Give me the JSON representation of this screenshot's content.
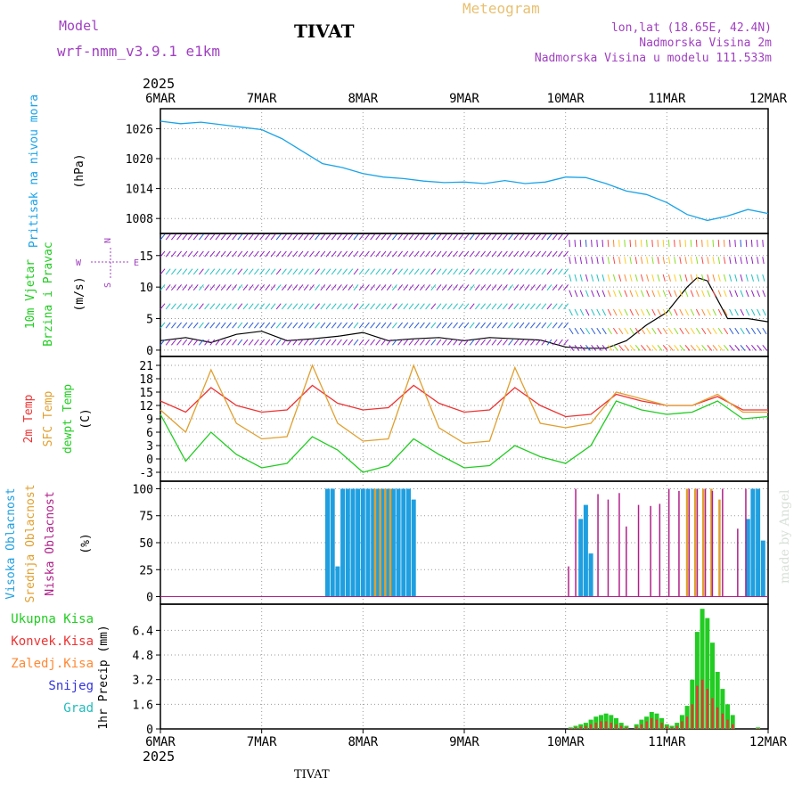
{
  "header": {
    "model_label": "Model",
    "model_name": "wrf-nmm_v3.9.1 e1km",
    "location": "TIVAT",
    "product": "Meteogram",
    "coords": "lon,lat (18.65E, 42.4N)",
    "elevation": "Nadmorska Visina 2m",
    "model_elevation": "Nadmorska Visina u modelu 111.533m"
  },
  "footer": {
    "location": "TIVAT",
    "watermark": "made by Angel"
  },
  "time_axis": {
    "year": "2025",
    "labels": [
      "6MAR",
      "7MAR",
      "8MAR",
      "9MAR",
      "10MAR",
      "11MAR",
      "12MAR"
    ]
  },
  "colors": {
    "pressure": "#1aa3e8",
    "speed": "#000000",
    "temp2m": "#ee3333",
    "sfc": "#e0a030",
    "dew": "#22cc22",
    "high_cloud": "#1f9fe0",
    "mid_cloud": "#e0a030",
    "low_cloud": "#b0208a",
    "total_precip": "#22cc22",
    "conv_precip": "#ee3333",
    "frz_precip": "#ff8833",
    "snow": "#3333dd",
    "hail": "#22bbbb"
  },
  "chart_data": [
    {
      "type": "line",
      "panel": "pressure",
      "ylabels": [
        "Pritisak na nivou mora",
        "(hPa)"
      ],
      "yticks": [
        1008,
        1014,
        1020,
        1026
      ],
      "ylim": [
        1005,
        1030
      ],
      "x": [
        0,
        0.2,
        0.4,
        0.6,
        0.8,
        1.0,
        1.2,
        1.4,
        1.6,
        1.8,
        2.0,
        2.2,
        2.4,
        2.6,
        2.8,
        3.0,
        3.2,
        3.4,
        3.6,
        3.8,
        4.0,
        4.2,
        4.4,
        4.6,
        4.8,
        5.0,
        5.2,
        5.4,
        5.6,
        5.8,
        6.0
      ],
      "series": [
        {
          "values": [
            1027.5,
            1027.0,
            1027.3,
            1026.8,
            1026.3,
            1025.8,
            1024.0,
            1021.5,
            1019.0,
            1018.2,
            1017.0,
            1016.3,
            1016.0,
            1015.5,
            1015.2,
            1015.3,
            1015.0,
            1015.6,
            1015.0,
            1015.3,
            1016.3,
            1016.2,
            1015.0,
            1013.5,
            1012.8,
            1011.2,
            1008.8,
            1007.6,
            1008.5,
            1009.8,
            1009.0
          ]
        }
      ]
    },
    {
      "type": "line",
      "panel": "wind",
      "ylabels": [
        "10m Vjetar",
        "Brzina i Pravac",
        "(m/s)"
      ],
      "direction_key": [
        "N",
        "W",
        "E",
        "S"
      ],
      "yticks": [
        0,
        5,
        10,
        15
      ],
      "ylim": [
        -1,
        18.5
      ],
      "x": [
        0,
        0.25,
        0.5,
        0.75,
        1.0,
        1.25,
        1.5,
        1.75,
        2.0,
        2.25,
        2.5,
        2.75,
        3.0,
        3.25,
        3.5,
        3.75,
        4.0,
        4.2,
        4.4,
        4.6,
        4.8,
        5.0,
        5.1,
        5.2,
        5.3,
        5.4,
        5.5,
        5.6,
        5.7,
        5.8,
        6.0
      ],
      "series": [
        {
          "name": "speed",
          "values": [
            1.5,
            2.0,
            1.2,
            2.5,
            3.0,
            1.5,
            1.8,
            2.2,
            2.8,
            1.5,
            1.8,
            2.0,
            1.5,
            2.0,
            1.8,
            1.6,
            0.5,
            0.3,
            0.3,
            1.5,
            4.0,
            6.0,
            8.0,
            10.0,
            11.5,
            11.0,
            8.0,
            5.0,
            5.0,
            5.0,
            4.5
          ]
        }
      ]
    },
    {
      "type": "line",
      "panel": "temperature",
      "ylabels": [
        "2m Temp",
        "SFC Temp",
        "dewpt Temp",
        "(C)"
      ],
      "yticks": [
        -3,
        0,
        3,
        6,
        9,
        12,
        15,
        18,
        21
      ],
      "ylim": [
        -5,
        23
      ],
      "x": [
        0,
        0.25,
        0.5,
        0.75,
        1.0,
        1.25,
        1.5,
        1.75,
        2.0,
        2.25,
        2.5,
        2.75,
        3.0,
        3.25,
        3.5,
        3.75,
        4.0,
        4.25,
        4.5,
        4.75,
        5.0,
        5.25,
        5.5,
        5.75,
        6.0
      ],
      "series": [
        {
          "name": "2m Temp",
          "values": [
            13.0,
            10.5,
            16.0,
            12.0,
            10.5,
            11.0,
            16.5,
            12.5,
            11.0,
            11.5,
            16.5,
            12.5,
            10.5,
            11.0,
            16.0,
            12.0,
            9.5,
            10.0,
            14.5,
            13.0,
            12.0,
            12.0,
            14.0,
            11.0,
            11.0
          ]
        },
        {
          "name": "SFC Temp",
          "values": [
            11.0,
            6.0,
            20.0,
            8.0,
            4.5,
            5.0,
            21.0,
            8.0,
            4.0,
            4.5,
            21.0,
            7.0,
            3.5,
            4.0,
            20.5,
            8.0,
            7.0,
            8.0,
            15.0,
            13.5,
            12.0,
            12.0,
            14.5,
            10.5,
            10.5
          ]
        },
        {
          "name": "dewpt Temp",
          "values": [
            10.0,
            -0.5,
            6.0,
            1.0,
            -2.0,
            -1.0,
            5.0,
            2.0,
            -3.0,
            -1.5,
            4.5,
            1.0,
            -2.0,
            -1.5,
            3.0,
            0.5,
            -1.0,
            3.0,
            13.0,
            11.0,
            10.0,
            10.5,
            13.0,
            9.0,
            9.5
          ]
        }
      ]
    },
    {
      "type": "bar",
      "panel": "clouds",
      "ylabels": [
        "Visoka Oblacnost",
        "Srednja Oblacnost",
        "Niska Oblacnost",
        "(%)"
      ],
      "yticks": [
        0,
        25,
        50,
        75,
        100
      ],
      "ylim": [
        -7,
        107
      ],
      "series": [
        {
          "name": "Visoka Oblacnost",
          "x": [
            1.65,
            1.7,
            1.75,
            1.8,
            1.85,
            1.9,
            1.95,
            2.0,
            2.05,
            2.1,
            2.15,
            2.2,
            2.25,
            2.3,
            2.35,
            2.4,
            2.45,
            2.5,
            4.15,
            4.2,
            4.25,
            5.8,
            5.85,
            5.9,
            5.95
          ],
          "values": [
            100,
            100,
            28,
            100,
            100,
            100,
            100,
            100,
            100,
            100,
            100,
            100,
            100,
            100,
            100,
            100,
            100,
            90,
            72,
            85,
            40,
            72,
            100,
            100,
            52
          ]
        },
        {
          "name": "Srednja Oblacnost",
          "x": [
            2.12,
            2.17,
            2.22,
            2.27,
            5.2,
            5.28,
            5.36,
            5.44,
            5.52
          ],
          "values": [
            100,
            100,
            100,
            100,
            100,
            100,
            100,
            100,
            90
          ]
        },
        {
          "name": "Niska Oblacnost",
          "x": [
            4.03,
            4.1,
            4.32,
            4.42,
            4.53,
            4.6,
            4.72,
            4.84,
            4.93,
            5.02,
            5.12,
            5.22,
            5.3,
            5.38,
            5.45,
            5.55,
            5.7,
            5.78
          ],
          "values": [
            28,
            100,
            95,
            90,
            96,
            65,
            85,
            84,
            86,
            100,
            98,
            100,
            100,
            100,
            98,
            100,
            63,
            100
          ]
        }
      ]
    },
    {
      "type": "bar",
      "panel": "precipitation",
      "ylabels": [
        "1hr Precip (mm)"
      ],
      "legend": [
        "Ukupna Kisa",
        "Konvek.Kisa",
        "Zaledj.Kisa",
        "Snijeg",
        "Grad"
      ],
      "yticks": [
        0,
        1.6,
        3.2,
        4.8,
        6.4
      ],
      "ylim": [
        0,
        8.1
      ],
      "x": [
        4.05,
        4.1,
        4.15,
        4.2,
        4.25,
        4.3,
        4.35,
        4.4,
        4.45,
        4.5,
        4.55,
        4.6,
        4.7,
        4.75,
        4.8,
        4.85,
        4.9,
        4.95,
        5.0,
        5.05,
        5.1,
        5.15,
        5.2,
        5.25,
        5.3,
        5.35,
        5.4,
        5.45,
        5.5,
        5.55,
        5.6,
        5.65,
        5.9
      ],
      "series": [
        {
          "name": "Ukupna Kisa",
          "values": [
            0.1,
            0.2,
            0.3,
            0.4,
            0.6,
            0.8,
            0.9,
            1.0,
            0.9,
            0.7,
            0.4,
            0.2,
            0.3,
            0.6,
            0.8,
            1.1,
            1.0,
            0.7,
            0.3,
            0.2,
            0.4,
            0.9,
            1.5,
            3.2,
            6.3,
            7.8,
            7.2,
            5.6,
            3.7,
            2.6,
            1.6,
            0.9,
            0.1
          ]
        },
        {
          "name": "Konvek.Kisa",
          "values": [
            0.05,
            0.1,
            0.15,
            0.2,
            0.3,
            0.4,
            0.5,
            0.5,
            0.4,
            0.3,
            0.2,
            0.1,
            0.15,
            0.3,
            0.5,
            0.7,
            0.6,
            0.4,
            0.15,
            0.1,
            0.2,
            0.5,
            0.8,
            1.6,
            2.8,
            3.2,
            2.6,
            2.0,
            1.4,
            1.0,
            0.6,
            0.3,
            0.05
          ]
        }
      ]
    }
  ]
}
